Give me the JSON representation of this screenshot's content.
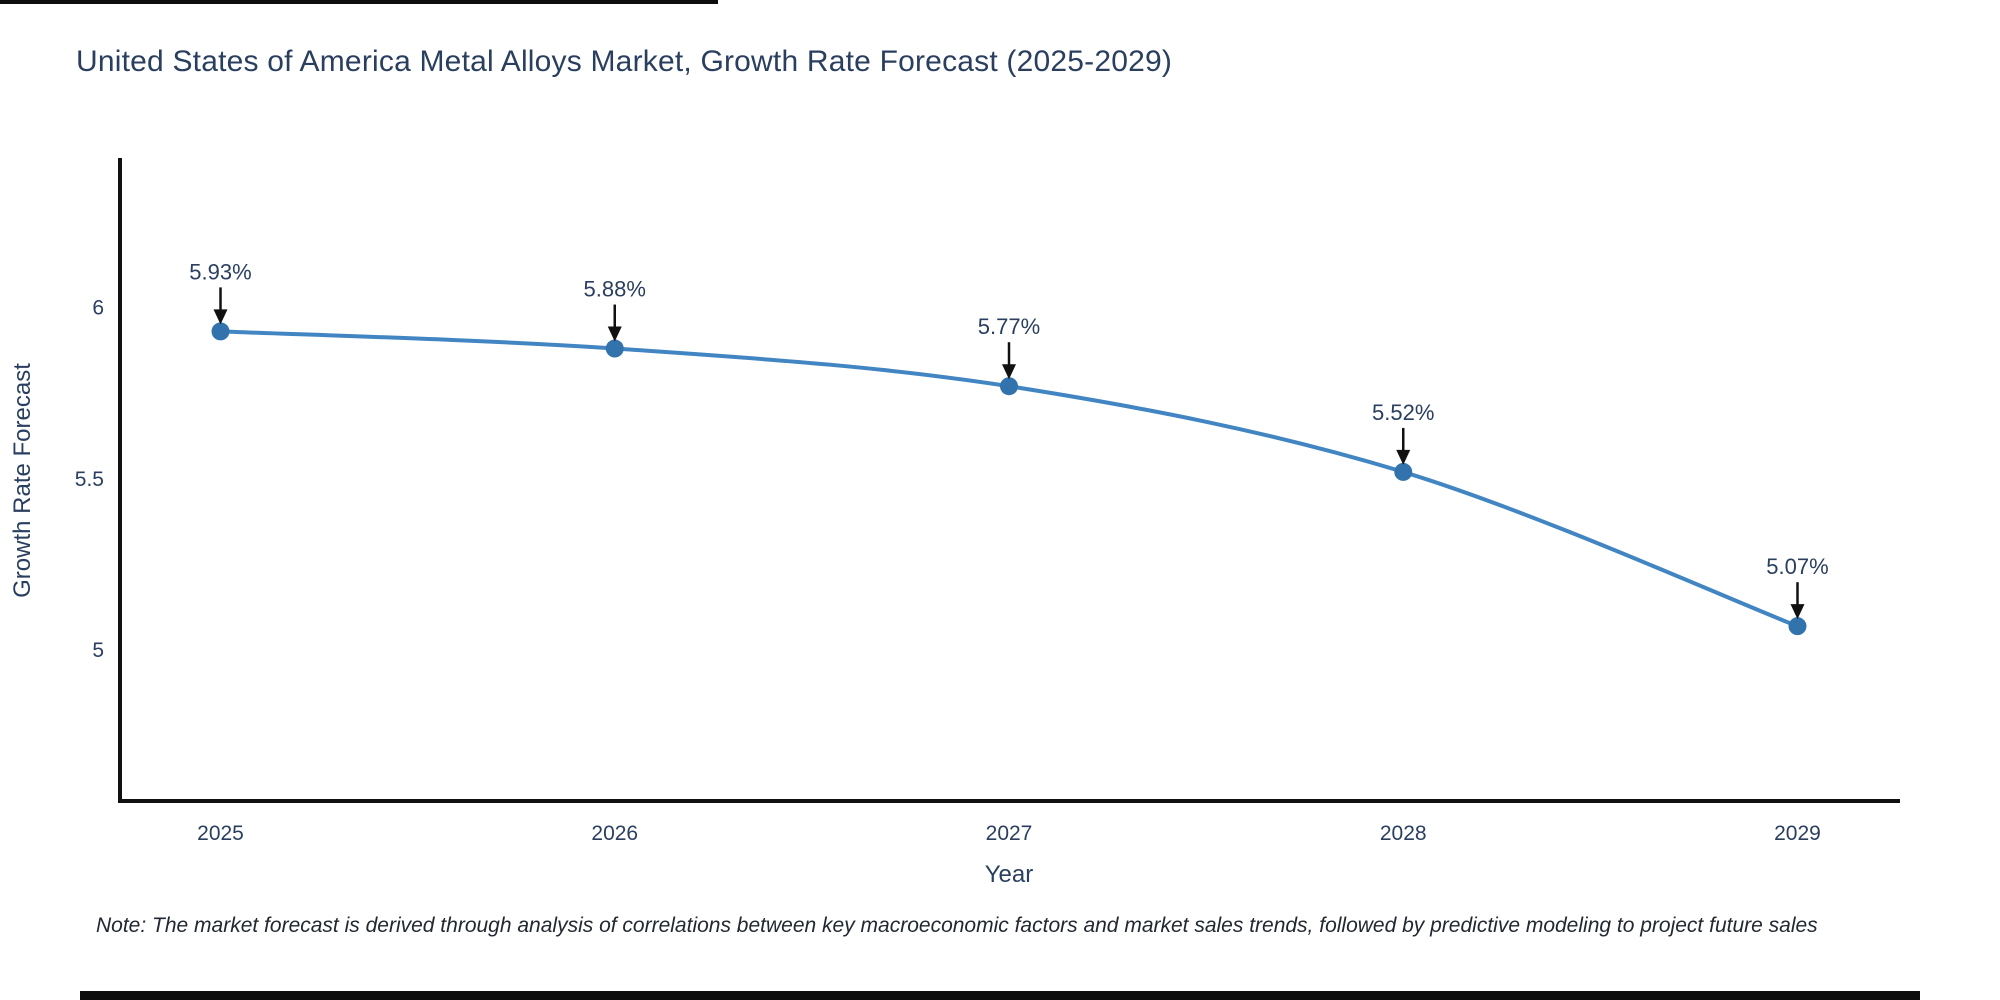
{
  "chart_data": {
    "type": "line",
    "title": "United States of America Metal Alloys Market, Growth Rate Forecast (2025-2029)",
    "x": [
      2025,
      2026,
      2027,
      2028,
      2029
    ],
    "x_tick_labels": [
      "2025",
      "2026",
      "2027",
      "2028",
      "2029"
    ],
    "series": [
      {
        "name": "Growth Rate Forecast",
        "values": [
          5.93,
          5.88,
          5.77,
          5.52,
          5.07
        ]
      }
    ],
    "point_labels": [
      "5.93%",
      "5.88%",
      "5.77%",
      "5.52%",
      "5.07%"
    ],
    "xlabel": "Year",
    "ylabel": "Growth Rate Forecast",
    "y_ticks": [
      {
        "value": 6,
        "label": "6"
      },
      {
        "value": 5.5,
        "label": "5.5"
      },
      {
        "value": 5,
        "label": "5"
      }
    ],
    "ylim": [
      4.56,
      6.43
    ],
    "xlim": [
      2024.74,
      2029.26
    ],
    "grid": false,
    "legend": "none",
    "line_shape": "spline",
    "colors": {
      "line": "#4285c3",
      "marker": "#3273ae",
      "text": "#2a3f5f",
      "axis": "#111111",
      "arrow": "#111111"
    }
  },
  "note": "Note: The market forecast is derived through analysis of correlations between key macroeconomic factors and market sales trends, followed by predictive modeling to project future sales"
}
